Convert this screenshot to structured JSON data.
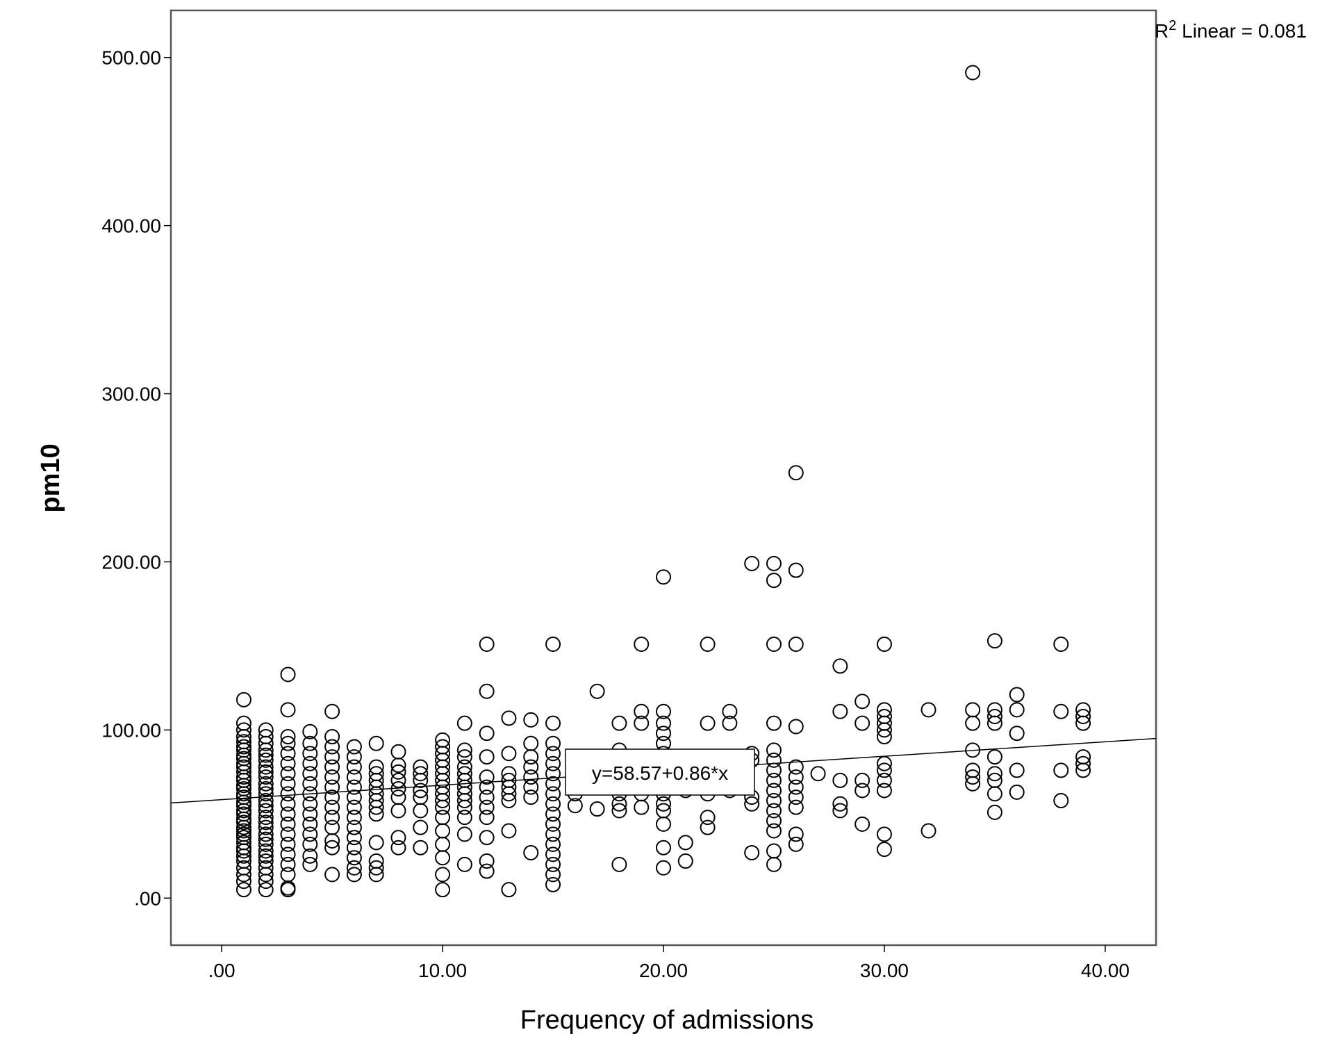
{
  "chart_data": {
    "type": "scatter",
    "xlabel": "Frequency of admissions",
    "ylabel": "pm10",
    "xlim": [
      -2.3,
      42.3
    ],
    "ylim": [
      -28,
      528
    ],
    "x_ticks": [
      0,
      10,
      20,
      30,
      40
    ],
    "y_ticks": [
      0,
      100,
      200,
      300,
      400,
      500
    ],
    "x_tick_labels": [
      ".00",
      "10.00",
      "20.00",
      "30.00",
      "40.00"
    ],
    "y_tick_labels": [
      ".00",
      "100.00",
      "200.00",
      "300.00",
      "400.00",
      "500.00"
    ],
    "grid": false,
    "fit_line": {
      "intercept": 58.57,
      "slope": 0.86,
      "equation_label": "y=58.57+0.86*x"
    },
    "r2_label": {
      "prefix": "R",
      "superscript": "2",
      "suffix": " Linear = 0.081"
    },
    "points": [
      [
        1,
        5
      ],
      [
        1,
        10
      ],
      [
        1,
        14
      ],
      [
        1,
        18
      ],
      [
        1,
        22
      ],
      [
        1,
        25
      ],
      [
        1,
        28
      ],
      [
        1,
        30
      ],
      [
        1,
        33
      ],
      [
        1,
        36
      ],
      [
        1,
        38
      ],
      [
        1,
        40
      ],
      [
        1,
        42
      ],
      [
        1,
        45
      ],
      [
        1,
        47
      ],
      [
        1,
        50
      ],
      [
        1,
        52
      ],
      [
        1,
        55
      ],
      [
        1,
        57
      ],
      [
        1,
        60
      ],
      [
        1,
        62
      ],
      [
        1,
        65
      ],
      [
        1,
        67
      ],
      [
        1,
        70
      ],
      [
        1,
        72
      ],
      [
        1,
        75
      ],
      [
        1,
        78
      ],
      [
        1,
        80
      ],
      [
        1,
        83
      ],
      [
        1,
        85
      ],
      [
        1,
        88
      ],
      [
        1,
        90
      ],
      [
        1,
        93
      ],
      [
        1,
        96
      ],
      [
        1,
        100
      ],
      [
        1,
        104
      ],
      [
        1,
        118
      ],
      [
        2,
        5
      ],
      [
        2,
        10
      ],
      [
        2,
        14
      ],
      [
        2,
        18
      ],
      [
        2,
        22
      ],
      [
        2,
        25
      ],
      [
        2,
        28
      ],
      [
        2,
        32
      ],
      [
        2,
        35
      ],
      [
        2,
        38
      ],
      [
        2,
        42
      ],
      [
        2,
        45
      ],
      [
        2,
        48
      ],
      [
        2,
        52
      ],
      [
        2,
        55
      ],
      [
        2,
        58
      ],
      [
        2,
        62
      ],
      [
        2,
        65
      ],
      [
        2,
        68
      ],
      [
        2,
        72
      ],
      [
        2,
        75
      ],
      [
        2,
        78
      ],
      [
        2,
        82
      ],
      [
        2,
        85
      ],
      [
        2,
        88
      ],
      [
        2,
        92
      ],
      [
        2,
        96
      ],
      [
        2,
        100
      ],
      [
        3,
        5
      ],
      [
        3,
        6
      ],
      [
        3,
        14
      ],
      [
        3,
        20
      ],
      [
        3,
        26
      ],
      [
        3,
        32
      ],
      [
        3,
        38
      ],
      [
        3,
        44
      ],
      [
        3,
        50
      ],
      [
        3,
        56
      ],
      [
        3,
        62
      ],
      [
        3,
        68
      ],
      [
        3,
        74
      ],
      [
        3,
        80
      ],
      [
        3,
        86
      ],
      [
        3,
        92
      ],
      [
        3,
        96
      ],
      [
        3,
        112
      ],
      [
        3,
        133
      ],
      [
        4,
        20
      ],
      [
        4,
        25
      ],
      [
        4,
        32
      ],
      [
        4,
        38
      ],
      [
        4,
        44
      ],
      [
        4,
        50
      ],
      [
        4,
        56
      ],
      [
        4,
        62
      ],
      [
        4,
        68
      ],
      [
        4,
        74
      ],
      [
        4,
        80
      ],
      [
        4,
        86
      ],
      [
        4,
        92
      ],
      [
        4,
        99
      ],
      [
        5,
        14
      ],
      [
        5,
        30
      ],
      [
        5,
        34
      ],
      [
        5,
        42
      ],
      [
        5,
        48
      ],
      [
        5,
        54
      ],
      [
        5,
        60
      ],
      [
        5,
        66
      ],
      [
        5,
        72
      ],
      [
        5,
        78
      ],
      [
        5,
        84
      ],
      [
        5,
        90
      ],
      [
        5,
        96
      ],
      [
        5,
        111
      ],
      [
        6,
        14
      ],
      [
        6,
        18
      ],
      [
        6,
        24
      ],
      [
        6,
        30
      ],
      [
        6,
        36
      ],
      [
        6,
        42
      ],
      [
        6,
        48
      ],
      [
        6,
        54
      ],
      [
        6,
        60
      ],
      [
        6,
        66
      ],
      [
        6,
        72
      ],
      [
        6,
        78
      ],
      [
        6,
        84
      ],
      [
        6,
        90
      ],
      [
        7,
        14
      ],
      [
        7,
        18
      ],
      [
        7,
        22
      ],
      [
        7,
        33
      ],
      [
        7,
        50
      ],
      [
        7,
        54
      ],
      [
        7,
        58
      ],
      [
        7,
        62
      ],
      [
        7,
        66
      ],
      [
        7,
        70
      ],
      [
        7,
        74
      ],
      [
        7,
        78
      ],
      [
        7,
        92
      ],
      [
        8,
        30
      ],
      [
        8,
        36
      ],
      [
        8,
        52
      ],
      [
        8,
        60
      ],
      [
        8,
        65
      ],
      [
        8,
        70
      ],
      [
        8,
        75
      ],
      [
        8,
        79
      ],
      [
        8,
        87
      ],
      [
        9,
        30
      ],
      [
        9,
        42
      ],
      [
        9,
        52
      ],
      [
        9,
        60
      ],
      [
        9,
        64
      ],
      [
        9,
        70
      ],
      [
        9,
        74
      ],
      [
        9,
        78
      ],
      [
        10,
        5
      ],
      [
        10,
        14
      ],
      [
        10,
        24
      ],
      [
        10,
        32
      ],
      [
        10,
        40
      ],
      [
        10,
        48
      ],
      [
        10,
        54
      ],
      [
        10,
        58
      ],
      [
        10,
        62
      ],
      [
        10,
        66
      ],
      [
        10,
        70
      ],
      [
        10,
        74
      ],
      [
        10,
        78
      ],
      [
        10,
        82
      ],
      [
        10,
        86
      ],
      [
        10,
        90
      ],
      [
        10,
        94
      ],
      [
        11,
        20
      ],
      [
        11,
        38
      ],
      [
        11,
        48
      ],
      [
        11,
        54
      ],
      [
        11,
        58
      ],
      [
        11,
        62
      ],
      [
        11,
        66
      ],
      [
        11,
        70
      ],
      [
        11,
        74
      ],
      [
        11,
        78
      ],
      [
        11,
        84
      ],
      [
        11,
        88
      ],
      [
        11,
        104
      ],
      [
        12,
        16
      ],
      [
        12,
        22
      ],
      [
        12,
        36
      ],
      [
        12,
        48
      ],
      [
        12,
        54
      ],
      [
        12,
        60
      ],
      [
        12,
        66
      ],
      [
        12,
        72
      ],
      [
        12,
        84
      ],
      [
        12,
        98
      ],
      [
        12,
        123
      ],
      [
        12,
        151
      ],
      [
        13,
        5
      ],
      [
        13,
        40
      ],
      [
        13,
        58
      ],
      [
        13,
        62
      ],
      [
        13,
        66
      ],
      [
        13,
        70
      ],
      [
        13,
        74
      ],
      [
        13,
        86
      ],
      [
        13,
        107
      ],
      [
        14,
        27
      ],
      [
        14,
        60
      ],
      [
        14,
        66
      ],
      [
        14,
        72
      ],
      [
        14,
        78
      ],
      [
        14,
        84
      ],
      [
        14,
        92
      ],
      [
        14,
        106
      ],
      [
        15,
        8
      ],
      [
        15,
        14
      ],
      [
        15,
        20
      ],
      [
        15,
        26
      ],
      [
        15,
        32
      ],
      [
        15,
        38
      ],
      [
        15,
        44
      ],
      [
        15,
        50
      ],
      [
        15,
        56
      ],
      [
        15,
        62
      ],
      [
        15,
        68
      ],
      [
        15,
        74
      ],
      [
        15,
        80
      ],
      [
        15,
        86
      ],
      [
        15,
        92
      ],
      [
        15,
        104
      ],
      [
        15,
        151
      ],
      [
        16,
        55
      ],
      [
        16,
        62
      ],
      [
        17,
        53
      ],
      [
        17,
        123
      ],
      [
        18,
        20
      ],
      [
        18,
        52
      ],
      [
        18,
        56
      ],
      [
        18,
        62
      ],
      [
        18,
        74
      ],
      [
        18,
        88
      ],
      [
        18,
        104
      ],
      [
        19,
        54
      ],
      [
        19,
        62
      ],
      [
        19,
        70
      ],
      [
        19,
        104
      ],
      [
        19,
        111
      ],
      [
        19,
        151
      ],
      [
        20,
        18
      ],
      [
        20,
        30
      ],
      [
        20,
        44
      ],
      [
        20,
        52
      ],
      [
        20,
        56
      ],
      [
        20,
        62
      ],
      [
        20,
        66
      ],
      [
        20,
        70
      ],
      [
        20,
        74
      ],
      [
        20,
        86
      ],
      [
        20,
        92
      ],
      [
        20,
        98
      ],
      [
        20,
        104
      ],
      [
        20,
        111
      ],
      [
        20,
        191
      ],
      [
        21,
        22
      ],
      [
        21,
        33
      ],
      [
        21,
        64
      ],
      [
        22,
        42
      ],
      [
        22,
        48
      ],
      [
        22,
        62
      ],
      [
        22,
        70
      ],
      [
        22,
        104
      ],
      [
        22,
        151
      ],
      [
        23,
        64
      ],
      [
        23,
        104
      ],
      [
        23,
        111
      ],
      [
        24,
        27
      ],
      [
        24,
        56
      ],
      [
        24,
        60
      ],
      [
        24,
        82
      ],
      [
        24,
        86
      ],
      [
        24,
        199
      ],
      [
        25,
        20
      ],
      [
        25,
        28
      ],
      [
        25,
        40
      ],
      [
        25,
        46
      ],
      [
        25,
        52
      ],
      [
        25,
        58
      ],
      [
        25,
        64
      ],
      [
        25,
        70
      ],
      [
        25,
        76
      ],
      [
        25,
        82
      ],
      [
        25,
        88
      ],
      [
        25,
        104
      ],
      [
        25,
        151
      ],
      [
        25,
        189
      ],
      [
        25,
        199
      ],
      [
        26,
        32
      ],
      [
        26,
        38
      ],
      [
        26,
        54
      ],
      [
        26,
        60
      ],
      [
        26,
        66
      ],
      [
        26,
        72
      ],
      [
        26,
        78
      ],
      [
        26,
        102
      ],
      [
        26,
        151
      ],
      [
        26,
        195
      ],
      [
        26,
        253
      ],
      [
        27,
        74
      ],
      [
        28,
        52
      ],
      [
        28,
        56
      ],
      [
        28,
        70
      ],
      [
        28,
        111
      ],
      [
        28,
        138
      ],
      [
        29,
        44
      ],
      [
        29,
        64
      ],
      [
        29,
        70
      ],
      [
        29,
        104
      ],
      [
        29,
        117
      ],
      [
        30,
        29
      ],
      [
        30,
        38
      ],
      [
        30,
        64
      ],
      [
        30,
        70
      ],
      [
        30,
        76
      ],
      [
        30,
        80
      ],
      [
        30,
        96
      ],
      [
        30,
        100
      ],
      [
        30,
        104
      ],
      [
        30,
        108
      ],
      [
        30,
        112
      ],
      [
        30,
        151
      ],
      [
        32,
        40
      ],
      [
        32,
        112
      ],
      [
        34,
        68
      ],
      [
        34,
        72
      ],
      [
        34,
        76
      ],
      [
        34,
        88
      ],
      [
        34,
        104
      ],
      [
        34,
        112
      ],
      [
        34,
        491
      ],
      [
        35,
        51
      ],
      [
        35,
        62
      ],
      [
        35,
        70
      ],
      [
        35,
        74
      ],
      [
        35,
        84
      ],
      [
        35,
        104
      ],
      [
        35,
        108
      ],
      [
        35,
        112
      ],
      [
        35,
        153
      ],
      [
        36,
        63
      ],
      [
        36,
        76
      ],
      [
        36,
        98
      ],
      [
        36,
        112
      ],
      [
        36,
        121
      ],
      [
        38,
        58
      ],
      [
        38,
        76
      ],
      [
        38,
        111
      ],
      [
        38,
        151
      ],
      [
        39,
        76
      ],
      [
        39,
        80
      ],
      [
        39,
        84
      ],
      [
        39,
        104
      ],
      [
        39,
        108
      ],
      [
        39,
        112
      ]
    ]
  }
}
